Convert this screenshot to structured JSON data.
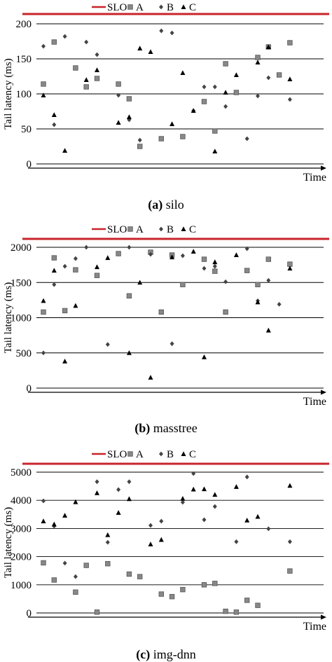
{
  "chart_data": [
    {
      "type": "scatter",
      "caption_letter": "(a)",
      "caption_text": "silo",
      "ylabel": "Tail latency (ms)",
      "xlabel": "Time",
      "ylim": [
        0,
        200
      ],
      "yticks": [
        0,
        50,
        100,
        150,
        200
      ],
      "grid": true,
      "slo_value": 214,
      "legend": {
        "placement": "top",
        "entries": [
          "SLO",
          "A",
          "B",
          "C"
        ]
      },
      "series": [
        {
          "name": "A",
          "marker": "square",
          "points": [
            [
              1,
              114
            ],
            [
              2,
              174
            ],
            [
              4,
              137
            ],
            [
              5,
              110
            ],
            [
              6,
              122
            ],
            [
              8,
              114
            ],
            [
              9,
              93
            ],
            [
              10,
              25
            ],
            [
              12,
              36
            ],
            [
              14,
              39
            ],
            [
              16,
              89
            ],
            [
              17,
              47
            ],
            [
              18,
              143
            ],
            [
              19,
              102
            ],
            [
              21,
              152
            ],
            [
              22,
              167
            ],
            [
              23,
              127
            ],
            [
              24,
              173
            ]
          ]
        },
        {
          "name": "B",
          "marker": "diamond",
          "points": [
            [
              1,
              168
            ],
            [
              2,
              56
            ],
            [
              3,
              182
            ],
            [
              5,
              174
            ],
            [
              6,
              156
            ],
            [
              8,
              98
            ],
            [
              9,
              63
            ],
            [
              10,
              34
            ],
            [
              12,
              190
            ],
            [
              13,
              187
            ],
            [
              15,
              76
            ],
            [
              16,
              110
            ],
            [
              17,
              110
            ],
            [
              18,
              82
            ],
            [
              20,
              36
            ],
            [
              21,
              97
            ],
            [
              22,
              123
            ],
            [
              24,
              92
            ]
          ]
        },
        {
          "name": "C",
          "marker": "triangle",
          "points": [
            [
              1,
              98
            ],
            [
              2,
              70
            ],
            [
              3,
              19
            ],
            [
              5,
              120
            ],
            [
              6,
              134
            ],
            [
              8,
              59
            ],
            [
              9,
              67
            ],
            [
              10,
              165
            ],
            [
              11,
              160
            ],
            [
              13,
              57
            ],
            [
              14,
              130
            ],
            [
              15,
              76
            ],
            [
              17,
              18
            ],
            [
              18,
              102
            ],
            [
              19,
              127
            ],
            [
              21,
              145
            ],
            [
              22,
              167
            ],
            [
              24,
              121
            ]
          ]
        }
      ]
    },
    {
      "type": "scatter",
      "caption_letter": "(b)",
      "caption_text": "masstree",
      "ylabel": "Tail latency (ms)",
      "xlabel": "Time",
      "ylim": [
        0,
        2000
      ],
      "yticks": [
        0,
        500,
        1000,
        1500,
        2000
      ],
      "grid": true,
      "slo_value": 2120,
      "legend": {
        "placement": "top",
        "entries": [
          "SLO",
          "A",
          "B",
          "C"
        ]
      },
      "series": [
        {
          "name": "A",
          "marker": "square",
          "points": [
            [
              1,
              1080
            ],
            [
              2,
              1850
            ],
            [
              3,
              1100
            ],
            [
              4,
              1680
            ],
            [
              6,
              1600
            ],
            [
              8,
              1910
            ],
            [
              9,
              1310
            ],
            [
              11,
              1930
            ],
            [
              12,
              1080
            ],
            [
              13,
              1890
            ],
            [
              14,
              1470
            ],
            [
              16,
              1830
            ],
            [
              17,
              1660
            ],
            [
              18,
              1080
            ],
            [
              20,
              1670
            ],
            [
              21,
              1470
            ],
            [
              22,
              1830
            ],
            [
              24,
              1760
            ]
          ]
        },
        {
          "name": "B",
          "marker": "diamond",
          "points": [
            [
              1,
              500
            ],
            [
              2,
              1470
            ],
            [
              3,
              1730
            ],
            [
              4,
              1840
            ],
            [
              5,
              2000
            ],
            [
              7,
              620
            ],
            [
              9,
              2000
            ],
            [
              11,
              1900
            ],
            [
              13,
              630
            ],
            [
              14,
              1880
            ],
            [
              16,
              1700
            ],
            [
              17,
              1730
            ],
            [
              18,
              1510
            ],
            [
              20,
              1980
            ],
            [
              21,
              1240
            ],
            [
              22,
              1530
            ],
            [
              23,
              1190
            ]
          ]
        },
        {
          "name": "C",
          "marker": "triangle",
          "points": [
            [
              1,
              1240
            ],
            [
              2,
              1670
            ],
            [
              3,
              380
            ],
            [
              4,
              1170
            ],
            [
              6,
              1720
            ],
            [
              7,
              1850
            ],
            [
              9,
              500
            ],
            [
              10,
              1500
            ],
            [
              11,
              150
            ],
            [
              13,
              1860
            ],
            [
              15,
              1940
            ],
            [
              16,
              440
            ],
            [
              17,
              1790
            ],
            [
              19,
              1890
            ],
            [
              21,
              1220
            ],
            [
              22,
              820
            ],
            [
              24,
              1700
            ]
          ]
        }
      ]
    },
    {
      "type": "scatter",
      "caption_letter": "(c)",
      "caption_text": "img-dnn",
      "ylabel": "Tail latency (ms)",
      "xlabel": "Time",
      "ylim": [
        0,
        5000
      ],
      "yticks": [
        0,
        1000,
        2000,
        3000,
        4000,
        5000
      ],
      "grid": true,
      "slo_value": 5300,
      "legend": {
        "placement": "top",
        "entries": [
          "SLO",
          "A",
          "B",
          "C"
        ]
      },
      "series": [
        {
          "name": "A",
          "marker": "square",
          "points": [
            [
              1,
              1780
            ],
            [
              2,
              1170
            ],
            [
              4,
              740
            ],
            [
              5,
              1690
            ],
            [
              6,
              30
            ],
            [
              7,
              1750
            ],
            [
              9,
              1380
            ],
            [
              10,
              1290
            ],
            [
              12,
              670
            ],
            [
              13,
              580
            ],
            [
              14,
              830
            ],
            [
              16,
              1000
            ],
            [
              17,
              1050
            ],
            [
              18,
              60
            ],
            [
              19,
              30
            ],
            [
              20,
              450
            ],
            [
              21,
              270
            ],
            [
              24,
              1490
            ]
          ]
        },
        {
          "name": "B",
          "marker": "diamond",
          "points": [
            [
              1,
              3980
            ],
            [
              2,
              3080
            ],
            [
              3,
              1770
            ],
            [
              4,
              1290
            ],
            [
              6,
              4660
            ],
            [
              7,
              2510
            ],
            [
              8,
              4380
            ],
            [
              9,
              4660
            ],
            [
              11,
              3110
            ],
            [
              12,
              3260
            ],
            [
              14,
              3930
            ],
            [
              15,
              4950
            ],
            [
              16,
              3310
            ],
            [
              17,
              3780
            ],
            [
              19,
              2530
            ],
            [
              20,
              4830
            ],
            [
              22,
              2990
            ],
            [
              24,
              2530
            ]
          ]
        },
        {
          "name": "C",
          "marker": "triangle",
          "points": [
            [
              1,
              3260
            ],
            [
              2,
              3150
            ],
            [
              3,
              3460
            ],
            [
              4,
              3940
            ],
            [
              6,
              4260
            ],
            [
              7,
              2770
            ],
            [
              8,
              3560
            ],
            [
              9,
              4050
            ],
            [
              11,
              2440
            ],
            [
              12,
              2600
            ],
            [
              14,
              4060
            ],
            [
              15,
              4390
            ],
            [
              16,
              4400
            ],
            [
              17,
              4200
            ],
            [
              19,
              4480
            ],
            [
              20,
              3290
            ],
            [
              21,
              3420
            ],
            [
              24,
              4520
            ]
          ]
        }
      ]
    }
  ]
}
